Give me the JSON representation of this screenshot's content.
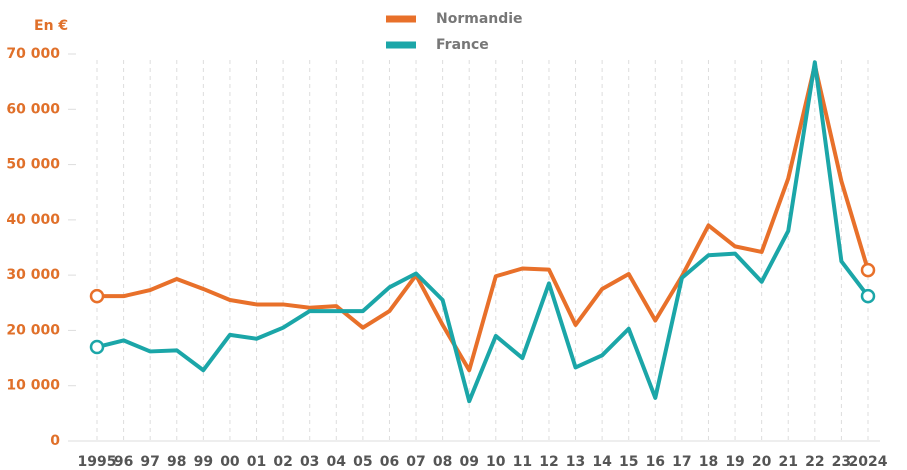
{
  "chart_data": {
    "type": "line",
    "y_label": "En €",
    "categories": [
      "1995",
      "96",
      "97",
      "98",
      "99",
      "00",
      "01",
      "02",
      "03",
      "04",
      "05",
      "06",
      "07",
      "08",
      "09",
      "10",
      "11",
      "12",
      "13",
      "14",
      "15",
      "16",
      "17",
      "18",
      "19",
      "20",
      "21",
      "22",
      "23",
      "2024"
    ],
    "series": [
      {
        "name": "Normandie",
        "color": "#e8702a",
        "values": [
          26200,
          26200,
          27300,
          29300,
          27500,
          25500,
          24700,
          24700,
          24100,
          24400,
          20500,
          23500,
          30000,
          21000,
          12800,
          29800,
          31200,
          31000,
          21000,
          27500,
          30200,
          21800,
          29800,
          39000,
          35200,
          34200,
          47500,
          68000,
          47000,
          30900
        ]
      },
      {
        "name": "France",
        "color": "#1ba6a8",
        "values": [
          17000,
          18200,
          16200,
          16400,
          12800,
          19200,
          18500,
          20500,
          23500,
          23500,
          23500,
          27800,
          30300,
          25500,
          7200,
          19000,
          15000,
          28500,
          13300,
          15500,
          20300,
          7800,
          29500,
          33600,
          33900,
          28800,
          38000,
          68500,
          32500,
          26200
        ]
      }
    ],
    "ylim": [
      0,
      70000
    ],
    "yticks": [
      0,
      {
        "value": 10000,
        "label": "10 000"
      },
      {
        "value": 20000,
        "label": "20 000"
      },
      {
        "value": 30000,
        "label": "30 000"
      },
      {
        "value": 40000,
        "label": "40 000"
      },
      {
        "value": 50000,
        "label": "50 000"
      },
      {
        "value": 60000,
        "label": "60 000"
      },
      {
        "value": 70000,
        "label": "70 000"
      }
    ],
    "legend": "top"
  }
}
